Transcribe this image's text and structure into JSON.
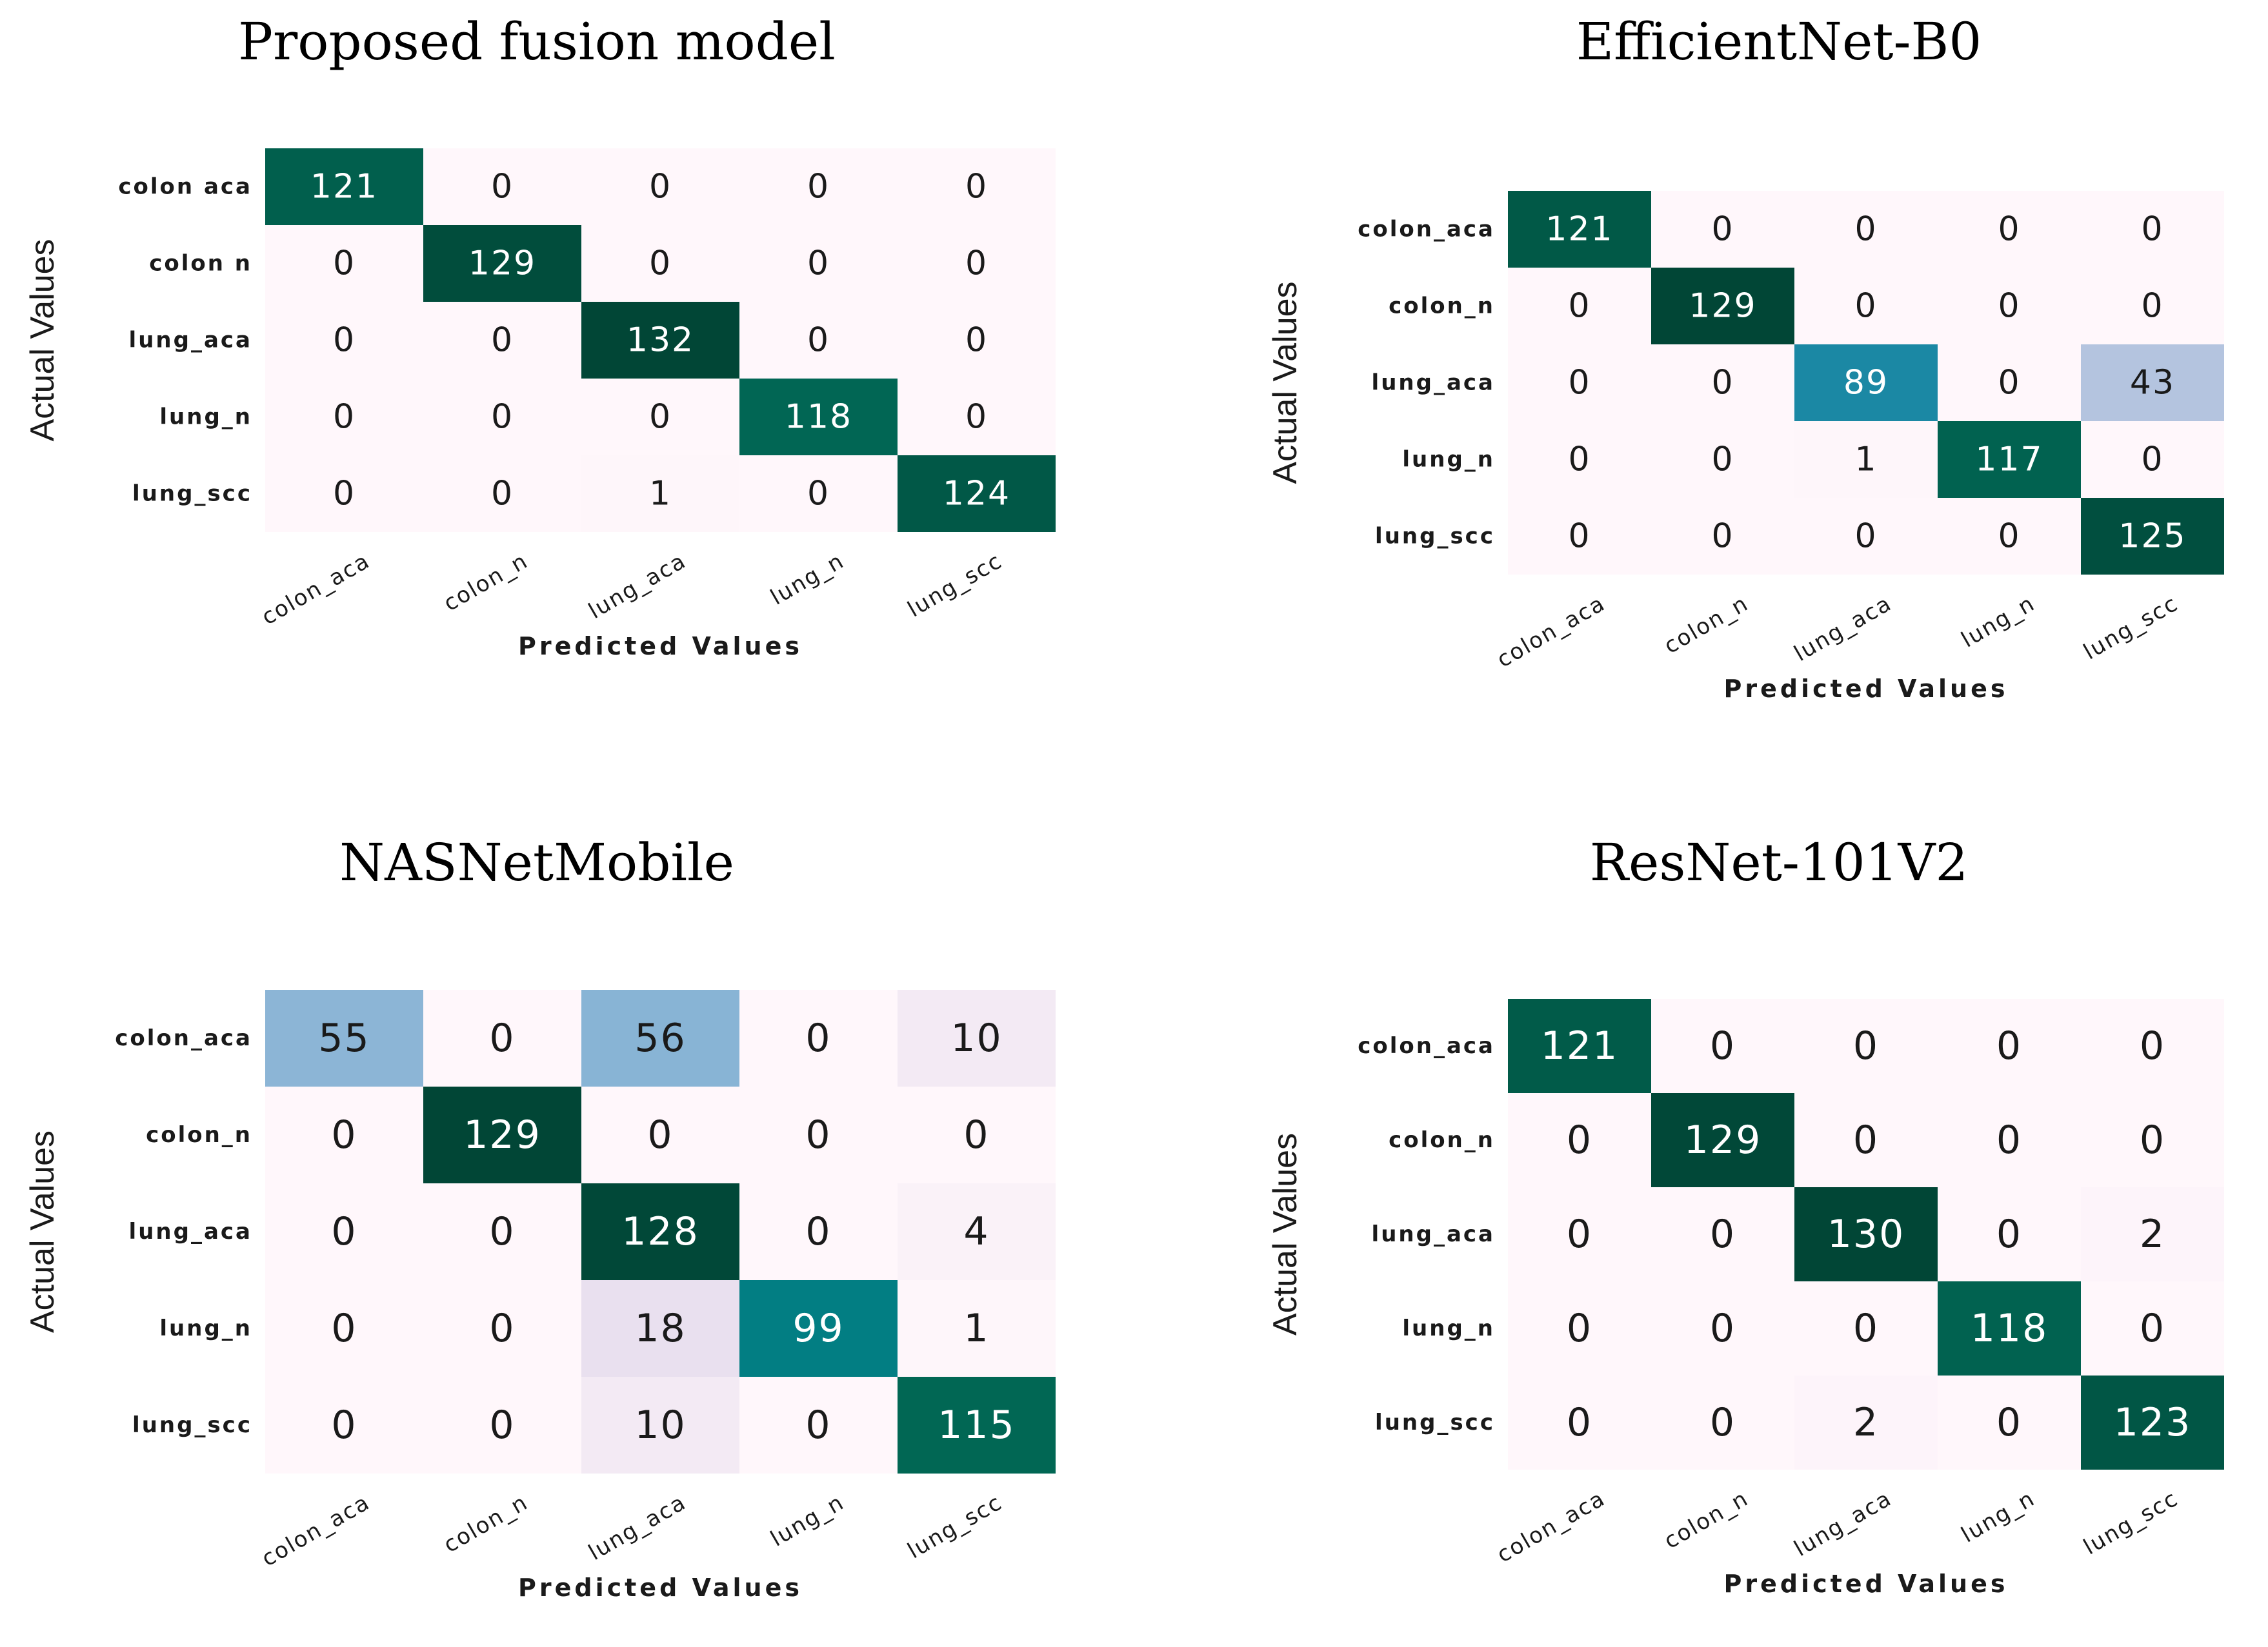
{
  "chart_data": [
    {
      "type": "heatmap",
      "title": "Proposed fusion model",
      "xlabel": "Predicted Values",
      "ylabel": "Actual Values",
      "x_categories": [
        "colon_aca",
        "colon_n",
        "lung_aca",
        "lung_n",
        "lung_scc"
      ],
      "y_categories": [
        "colon aca",
        "colon n",
        "lung_aca",
        "lung_n",
        "lung_scc"
      ],
      "matrix": [
        [
          121,
          0,
          0,
          0,
          0
        ],
        [
          0,
          129,
          0,
          0,
          0
        ],
        [
          0,
          0,
          132,
          0,
          0
        ],
        [
          0,
          0,
          0,
          118,
          0
        ],
        [
          0,
          0,
          1,
          0,
          124
        ]
      ],
      "colormap": "PuBuGn",
      "vmax": 132
    },
    {
      "type": "heatmap",
      "title": "EfficientNet-B0",
      "xlabel": "Predicted Values",
      "ylabel": "Actual Values",
      "x_categories": [
        "colon_aca",
        "colon_n",
        "lung_aca",
        "lung_n",
        "lung_scc"
      ],
      "y_categories": [
        "colon_aca",
        "colon_n",
        "lung_aca",
        "lung_n",
        "lung_scc"
      ],
      "matrix": [
        [
          121,
          0,
          0,
          0,
          0
        ],
        [
          0,
          129,
          0,
          0,
          0
        ],
        [
          0,
          0,
          89,
          0,
          43
        ],
        [
          0,
          0,
          1,
          117,
          0
        ],
        [
          0,
          0,
          0,
          0,
          125
        ]
      ],
      "colormap": "PuBuGn",
      "vmax": 129
    },
    {
      "type": "heatmap",
      "title": "NASNetMobile",
      "xlabel": "Predicted Values",
      "ylabel": "Actual Values",
      "x_categories": [
        "colon_aca",
        "colon_n",
        "lung_aca",
        "lung_n",
        "lung_scc"
      ],
      "y_categories": [
        "colon_aca",
        "colon_n",
        "lung_aca",
        "lung_n",
        "lung_scc"
      ],
      "matrix": [
        [
          55,
          0,
          56,
          0,
          10
        ],
        [
          0,
          129,
          0,
          0,
          0
        ],
        [
          0,
          0,
          128,
          0,
          4
        ],
        [
          0,
          0,
          18,
          99,
          1
        ],
        [
          0,
          0,
          10,
          0,
          115
        ]
      ],
      "colormap": "PuBuGn",
      "vmax": 129
    },
    {
      "type": "heatmap",
      "title": "ResNet-101V2",
      "xlabel": "Predicted Values",
      "ylabel": "Actual Values",
      "x_categories": [
        "colon_aca",
        "colon_n",
        "lung_aca",
        "lung_n",
        "lung_scc"
      ],
      "y_categories": [
        "colon_aca",
        "colon_n",
        "lung_aca",
        "lung_n",
        "lung_scc"
      ],
      "matrix": [
        [
          121,
          0,
          0,
          0,
          0
        ],
        [
          0,
          129,
          0,
          0,
          0
        ],
        [
          0,
          0,
          130,
          0,
          2
        ],
        [
          0,
          0,
          0,
          118,
          0
        ],
        [
          0,
          0,
          2,
          0,
          123
        ]
      ],
      "colormap": "PuBuGn",
      "vmax": 130
    }
  ]
}
